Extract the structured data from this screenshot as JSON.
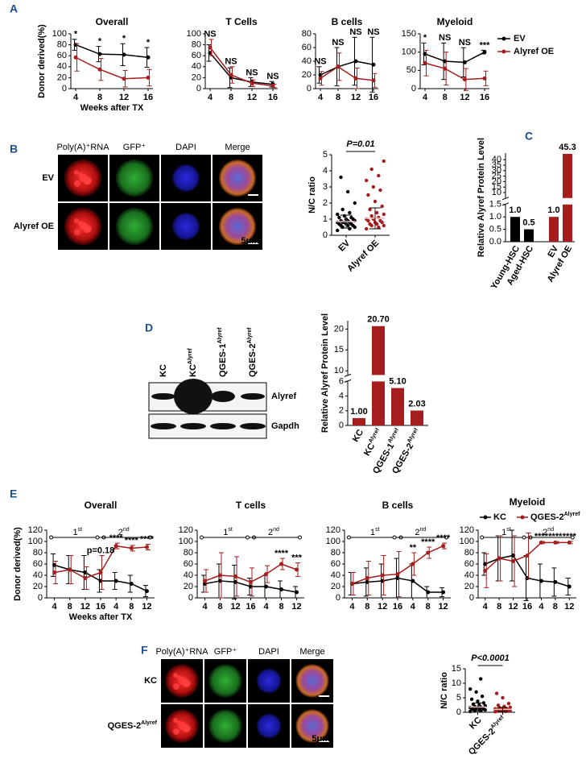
{
  "figure": {
    "panel_labels": [
      "A",
      "B",
      "C",
      "D",
      "E",
      "F"
    ],
    "B_images": {
      "columns": [
        "Poly(A)⁺RNA",
        "GFP⁺",
        "DAPI",
        "Merge"
      ],
      "rows": [
        "EV",
        "Alyref OE"
      ],
      "scale_bar": "5μm"
    },
    "D_blot": {
      "lanes": [
        "KC",
        "KC",
        "QGES-1",
        "QGES-2"
      ],
      "lane_superscripts": {
        "1": "Alyref",
        "2": "Alyref",
        "3": "Alyref"
      },
      "bands": [
        "Alyref",
        "Gapdh"
      ]
    },
    "F_images": {
      "columns": [
        "Poly(A)⁺RNA",
        "GFP⁺",
        "DAPI",
        "Merge"
      ],
      "rows": [
        "KC",
        "QGES-2"
      ],
      "row_superscripts": {
        "1": "Alyref"
      },
      "scale_bar": "5μm"
    }
  },
  "chart_data": [
    {
      "type": "line",
      "title": "Overall",
      "ylabel": "Donor derived(%)",
      "xlabel": "Weeks after TX",
      "x": [
        4,
        8,
        12,
        16
      ],
      "xlim": [
        4,
        16
      ],
      "xticks": [
        4,
        8,
        12,
        16
      ],
      "ylim": [
        0,
        100
      ],
      "yticks": [
        0,
        20,
        40,
        60,
        80,
        100
      ],
      "series": [
        {
          "color": "#000000",
          "values": [
            80,
            63,
            62,
            57
          ],
          "errors": [
            10,
            14,
            20,
            18
          ]
        },
        {
          "color": "#a51d1d",
          "values": [
            57,
            35,
            18,
            20
          ],
          "errors": [
            25,
            20,
            15,
            15
          ]
        }
      ],
      "annotations": [
        "*",
        "*",
        "*",
        "*"
      ]
    },
    {
      "type": "line",
      "title": "T Cells",
      "x": [
        4,
        8,
        12,
        16
      ],
      "xlim": [
        4,
        16
      ],
      "xticks": [
        4,
        8,
        12,
        16
      ],
      "ylim": [
        0,
        100
      ],
      "yticks": [
        0,
        20,
        40,
        60,
        80,
        100
      ],
      "series": [
        {
          "color": "#000000",
          "values": [
            65,
            20,
            12,
            8
          ],
          "errors": [
            15,
            18,
            8,
            5
          ]
        },
        {
          "color": "#a51d1d",
          "values": [
            75,
            25,
            10,
            5
          ],
          "errors": [
            15,
            15,
            6,
            3
          ]
        }
      ],
      "annotations": [
        "NS",
        "NS",
        "NS",
        "NS"
      ]
    },
    {
      "type": "line",
      "title": "B cells",
      "x": [
        4,
        8,
        12,
        16
      ],
      "xlim": [
        4,
        16
      ],
      "xticks": [
        4,
        8,
        12,
        16
      ],
      "ylim": [
        0,
        80
      ],
      "yticks": [
        0,
        20,
        40,
        60,
        80
      ],
      "series": [
        {
          "color": "#000000",
          "values": [
            20,
            32,
            40,
            35
          ],
          "errors": [
            12,
            28,
            35,
            40
          ]
        },
        {
          "color": "#a51d1d",
          "values": [
            15,
            32,
            15,
            12
          ],
          "errors": [
            10,
            20,
            15,
            10
          ]
        }
      ],
      "annotations": [
        "NS",
        "NS",
        "NS",
        "NS"
      ]
    },
    {
      "type": "line",
      "title": "Myeloid",
      "x": [
        4,
        8,
        12,
        16
      ],
      "xlim": [
        4,
        16
      ],
      "xticks": [
        4,
        8,
        12,
        16
      ],
      "ylim": [
        0,
        150
      ],
      "yticks": [
        0,
        50,
        100,
        150
      ],
      "series": [
        {
          "name": "EV",
          "color": "#000000",
          "values": [
            95,
            75,
            72,
            100
          ],
          "errors": [
            30,
            50,
            40,
            5
          ]
        },
        {
          "name": "Alyref OE",
          "color": "#a51d1d",
          "values": [
            70,
            55,
            25,
            28
          ],
          "errors": [
            35,
            45,
            30,
            20
          ]
        }
      ],
      "annotations": [
        "*",
        "NS",
        "NS",
        "***"
      ],
      "legend": "right"
    },
    {
      "type": "dot",
      "ylabel": "N/C ratio",
      "categories": [
        "EV",
        "Alyref OE"
      ],
      "colors": [
        "#000000",
        "#a51d1d"
      ],
      "ylim": [
        0,
        5
      ],
      "yticks": [
        0,
        1,
        2,
        3,
        4,
        5
      ],
      "points": [
        [
          0.3,
          0.4,
          0.5,
          0.5,
          0.6,
          0.6,
          0.6,
          0.7,
          0.7,
          0.7,
          0.8,
          0.8,
          0.8,
          0.8,
          0.9,
          0.9,
          0.9,
          1.0,
          1.0,
          1.1,
          1.1,
          1.2,
          1.3,
          1.4,
          1.6,
          2.0,
          2.7,
          3.6
        ],
        [
          0.4,
          0.5,
          0.6,
          0.6,
          0.7,
          0.7,
          0.8,
          0.8,
          0.9,
          0.9,
          1.0,
          1.0,
          1.1,
          1.2,
          1.3,
          1.4,
          1.6,
          1.8,
          2.1,
          2.5,
          2.8,
          3.0,
          3.4,
          3.7,
          4.1,
          4.6
        ]
      ],
      "means": [
        0.85,
        1.05
      ],
      "sd": [
        0.4,
        0.65
      ],
      "annotation": "P=0.01"
    },
    {
      "type": "bar",
      "ylabel": "Relative Alyref Protein Level",
      "categories": [
        "Young-HSC",
        "Aged-HSC",
        "EV",
        "Alyref OE"
      ],
      "values": [
        1.0,
        0.5,
        1.0,
        45.3
      ],
      "value_labels": [
        "1.0",
        "0.5",
        "1.0",
        "45.3"
      ],
      "colors": [
        "#000000",
        "#000000",
        "#a51d1d",
        "#a51d1d"
      ],
      "ylim": [
        0,
        46
      ],
      "axis_break": [
        1.5,
        5
      ],
      "yticks": [
        {
          "value": 0,
          "label": "0.0"
        },
        0.5,
        {
          "value": 1,
          "label": "1.0"
        },
        1.5,
        10,
        15,
        20,
        25,
        30,
        35,
        40
      ]
    },
    {
      "type": "bar",
      "ylabel": "Relative Alyref Protein Level",
      "categories": [
        "KC",
        "KC",
        "QGES-1",
        "QGES-2"
      ],
      "category_superscripts": {
        "1": "Alyref",
        "2": "Alyref",
        "3": "Alyref"
      },
      "values": [
        1.0,
        20.7,
        5.1,
        2.03
      ],
      "value_labels": [
        "1.00",
        "20.70",
        "5.10",
        "2.03"
      ],
      "colors": [
        "#a51d1d",
        "#a51d1d",
        "#a51d1d",
        "#a51d1d"
      ],
      "ylim": [
        0,
        22
      ],
      "axis_break": [
        6,
        9
      ],
      "yticks": [
        0,
        2,
        4,
        6,
        10,
        15,
        20
      ]
    },
    {
      "type": "line",
      "title": "Overall",
      "ylabel": "Donor derived(%)",
      "xlabel": "Weeks after TX",
      "categories": [
        "4",
        "8",
        "12",
        "16",
        "4",
        "8",
        "12"
      ],
      "ylim": [
        0,
        120
      ],
      "yticks": [
        0,
        20,
        40,
        60,
        80,
        100,
        120
      ],
      "series": [
        {
          "color": "#000000",
          "values": [
            58,
            50,
            45,
            30,
            30,
            25,
            12
          ],
          "errors": [
            20,
            25,
            30,
            20,
            15,
            15,
            10
          ]
        },
        {
          "color": "#a51d1d",
          "values": [
            45,
            50,
            35,
            45,
            92,
            88,
            90
          ],
          "errors": [
            20,
            25,
            20,
            30,
            5,
            5,
            5
          ]
        }
      ],
      "annotations": [
        null,
        null,
        null,
        "p=0.18",
        "****",
        "****",
        "****"
      ],
      "brackets": [
        {
          "text": "1",
          "sup": "st"
        },
        {
          "text": "2",
          "sup": "nd"
        }
      ]
    },
    {
      "type": "line",
      "title": "T cells",
      "categories": [
        "4",
        "8",
        "12",
        "16",
        "4",
        "8",
        "12"
      ],
      "ylim": [
        0,
        120
      ],
      "yticks": [
        0,
        20,
        40,
        60,
        80,
        100,
        120
      ],
      "series": [
        {
          "color": "#000000",
          "values": [
            25,
            30,
            28,
            20,
            20,
            15,
            10
          ],
          "errors": [
            15,
            30,
            30,
            15,
            20,
            15,
            10
          ]
        },
        {
          "color": "#a51d1d",
          "values": [
            30,
            40,
            38,
            28,
            42,
            60,
            50
          ],
          "errors": [
            20,
            40,
            35,
            25,
            15,
            10,
            12
          ]
        }
      ],
      "annotations": [
        null,
        null,
        null,
        null,
        null,
        "****",
        "***"
      ],
      "brackets": [
        {
          "text": "1",
          "sup": "st"
        },
        {
          "text": "2",
          "sup": "nd"
        }
      ]
    },
    {
      "type": "line",
      "title": "B cells",
      "categories": [
        "4",
        "8",
        "12",
        "16",
        "4",
        "8",
        "12"
      ],
      "ylim": [
        0,
        120
      ],
      "yticks": [
        0,
        20,
        40,
        60,
        80,
        100,
        120
      ],
      "series": [
        {
          "color": "#000000",
          "values": [
            25,
            28,
            30,
            35,
            30,
            10,
            10
          ],
          "errors": [
            20,
            25,
            30,
            35,
            30,
            10,
            8
          ]
        },
        {
          "color": "#a51d1d",
          "values": [
            25,
            35,
            40,
            42,
            60,
            80,
            92
          ],
          "errors": [
            20,
            30,
            35,
            40,
            20,
            10,
            5
          ]
        }
      ],
      "annotations": [
        null,
        null,
        null,
        null,
        "**",
        "****",
        "****"
      ],
      "brackets": [
        {
          "text": "1",
          "sup": "st"
        },
        {
          "text": "2",
          "sup": "nd"
        }
      ]
    },
    {
      "type": "line",
      "title": "Myeloid",
      "categories": [
        "4",
        "8",
        "12",
        "16",
        "4",
        "8",
        "12"
      ],
      "ylim": [
        0,
        120
      ],
      "yticks": [
        0,
        20,
        40,
        60,
        80,
        100,
        120
      ],
      "series": [
        {
          "name": "KC",
          "color": "#000000",
          "values": [
            60,
            70,
            75,
            35,
            30,
            28,
            20
          ],
          "errors": [
            20,
            40,
            45,
            40,
            30,
            25,
            15
          ]
        },
        {
          "name": "QGES-2",
          "name_sup": "Alyref",
          "color": "#a51d1d",
          "values": [
            48,
            70,
            65,
            75,
            98,
            98,
            98
          ],
          "errors": [
            30,
            40,
            45,
            40,
            2,
            2,
            2
          ]
        }
      ],
      "annotations": [
        null,
        null,
        null,
        null,
        "****",
        "****",
        "****"
      ],
      "legend": "top",
      "brackets": [
        {
          "text": "1",
          "sup": "st"
        },
        {
          "text": "2",
          "sup": "nd"
        }
      ]
    },
    {
      "type": "dot",
      "ylabel": "N/C ratio",
      "categories": [
        "KC",
        "QGES-2"
      ],
      "category_superscripts": {
        "1": "Alyref"
      },
      "colors": [
        "#000000",
        "#a51d1d"
      ],
      "ylim": [
        0,
        15
      ],
      "yticks": [
        0,
        5,
        10,
        15
      ],
      "points": [
        [
          0.3,
          0.5,
          0.6,
          0.8,
          0.9,
          1.0,
          1.1,
          1.2,
          1.3,
          1.4,
          1.5,
          1.6,
          1.8,
          2.0,
          2.2,
          2.5,
          2.8,
          3.2,
          3.8,
          4.5,
          5.5,
          7.0,
          8.0,
          11.5
        ],
        [
          0.2,
          0.3,
          0.4,
          0.5,
          0.6,
          0.7,
          0.8,
          0.9,
          1.0,
          1.0,
          1.1,
          1.2,
          1.3,
          1.5,
          1.7,
          2.0,
          2.4,
          3.0,
          5.0,
          6.5
        ]
      ],
      "means": [
        1.8,
        1.0
      ],
      "sd": [
        1.4,
        0.7
      ],
      "annotation": "P<0.0001"
    }
  ]
}
